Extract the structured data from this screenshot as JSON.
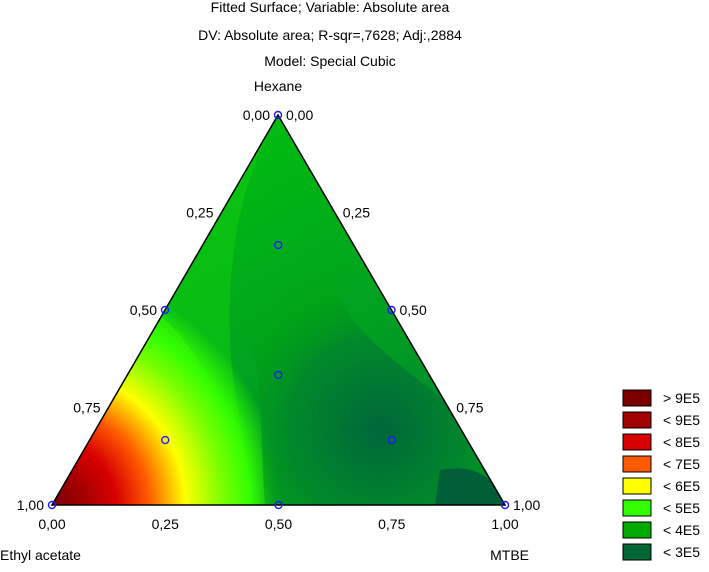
{
  "chart_data": {
    "type": "contour",
    "title_lines": [
      "Fitted Surface; Variable: Absolute area",
      "DV: Absolute area; R-sqr=,7628; Adj:,2884",
      "Model: Special Cubic"
    ],
    "vertex_labels": {
      "top": "Hexane",
      "bottom_left": "Ethyl acetate",
      "bottom_right": "MTBE"
    },
    "ticks": [
      "0,00",
      "0,25",
      "0,50",
      "0,75",
      "1,00"
    ],
    "design_points": [
      {
        "hexane": 1.0,
        "mtbe": 0.0,
        "ethyl_acetate": 0.0
      },
      {
        "hexane": 0.0,
        "mtbe": 1.0,
        "ethyl_acetate": 0.0
      },
      {
        "hexane": 0.0,
        "mtbe": 0.0,
        "ethyl_acetate": 1.0
      },
      {
        "hexane": 0.5,
        "mtbe": 0.5,
        "ethyl_acetate": 0.0
      },
      {
        "hexane": 0.5,
        "mtbe": 0.0,
        "ethyl_acetate": 0.5
      },
      {
        "hexane": 0.0,
        "mtbe": 0.5,
        "ethyl_acetate": 0.5
      },
      {
        "hexane": 0.6667,
        "mtbe": 0.1667,
        "ethyl_acetate": 0.1667
      },
      {
        "hexane": 0.1667,
        "mtbe": 0.6667,
        "ethyl_acetate": 0.1667
      },
      {
        "hexane": 0.1667,
        "mtbe": 0.1667,
        "ethyl_acetate": 0.6667
      },
      {
        "hexane": 0.3333,
        "mtbe": 0.3333,
        "ethyl_acetate": 0.3333
      }
    ],
    "legend": [
      {
        "label": "> 9E5",
        "color": "#7a0000"
      },
      {
        "label": "< 9E5",
        "color": "#a00000"
      },
      {
        "label": "< 8E5",
        "color": "#d80000"
      },
      {
        "label": "< 7E5",
        "color": "#ff5a00"
      },
      {
        "label": "< 6E5",
        "color": "#ffff00"
      },
      {
        "label": "< 5E5",
        "color": "#33ff00"
      },
      {
        "label": "< 4E5",
        "color": "#00aa00"
      },
      {
        "label": "< 3E5",
        "color": "#006633"
      }
    ]
  }
}
